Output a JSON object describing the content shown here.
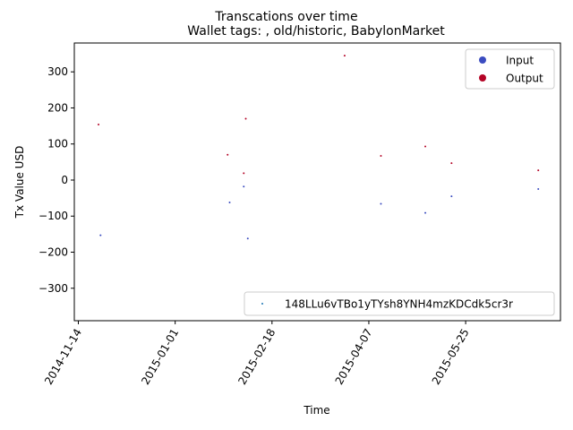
{
  "chart_data": {
    "type": "scatter",
    "suptitle": "Transcations over time",
    "title": "Wallet tags: , old/historic, BabylonMarket",
    "xlabel": "Time",
    "ylabel": "Tx Value USD",
    "xlim": [
      "2014-11-12",
      "2015-07-11"
    ],
    "ylim": [
      -390,
      380
    ],
    "x_ticks": [
      "2014-11-14",
      "2015-01-01",
      "2015-02-18",
      "2015-04-07",
      "2015-05-25"
    ],
    "y_ticks": [
      -300,
      -200,
      -100,
      0,
      100,
      200,
      300
    ],
    "y_tick_labels": [
      "−300",
      "−200",
      "−100",
      "0",
      "100",
      "200",
      "300"
    ],
    "series": [
      {
        "name": "Input",
        "color": "#3b4cc0",
        "points": [
          {
            "x": "2014-11-25",
            "y": -153
          },
          {
            "x": "2015-01-28",
            "y": -62
          },
          {
            "x": "2015-02-04",
            "y": -18
          },
          {
            "x": "2015-02-06",
            "y": -162
          },
          {
            "x": "2015-04-13",
            "y": -66
          },
          {
            "x": "2015-05-05",
            "y": -91
          },
          {
            "x": "2015-05-18",
            "y": -45
          },
          {
            "x": "2015-06-30",
            "y": -25
          }
        ]
      },
      {
        "name": "Output",
        "color": "#b40426",
        "points": [
          {
            "x": "2014-11-24",
            "y": 154
          },
          {
            "x": "2015-01-27",
            "y": 70
          },
          {
            "x": "2015-02-04",
            "y": 19
          },
          {
            "x": "2015-02-05",
            "y": 170
          },
          {
            "x": "2015-03-26",
            "y": 345
          },
          {
            "x": "2015-04-13",
            "y": 67
          },
          {
            "x": "2015-05-05",
            "y": 93
          },
          {
            "x": "2015-05-18",
            "y": 47
          },
          {
            "x": "2015-06-30",
            "y": 27
          }
        ]
      }
    ],
    "legend_top": {
      "placement": "upper right",
      "entries": [
        {
          "label": "Input",
          "color": "#3b4cc0"
        },
        {
          "label": "Output",
          "color": "#b40426"
        }
      ]
    },
    "legend_bottom": {
      "placement": "lower right",
      "label": "148LLu6vTBo1yTYsh8YNH4mzKDCdk5cr3r",
      "color": "#1f77b4"
    }
  }
}
